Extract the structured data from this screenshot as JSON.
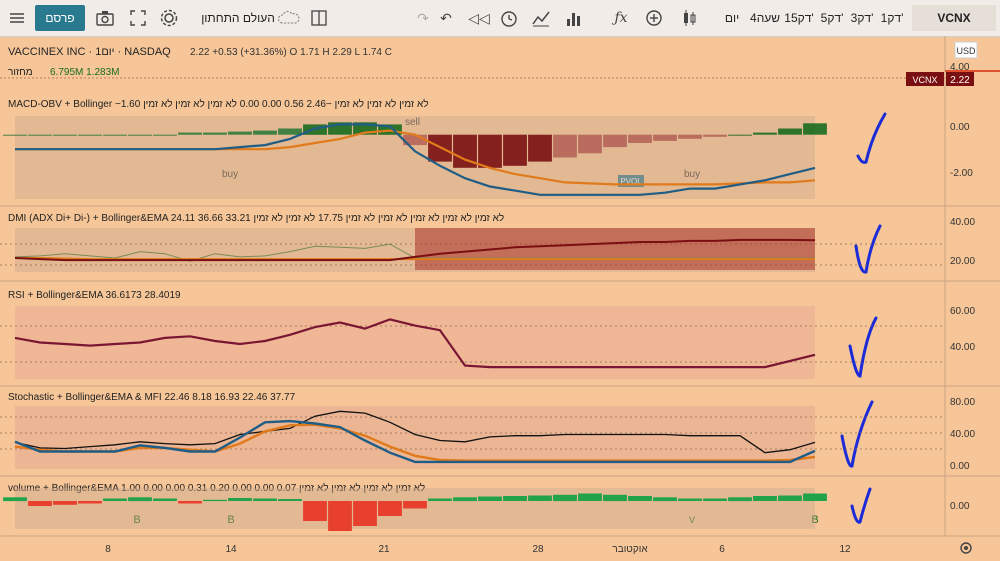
{
  "toolbar": {
    "publish_label": "פרסם",
    "workspace_label": "העולם התחתון",
    "interval_label": "יום",
    "hour4_label": "4שעה",
    "intervals": [
      "1דק'",
      "3דק'",
      "5דק'",
      "15דק'"
    ],
    "symbol": "VCNX"
  },
  "header": {
    "title": "VACCINEX INC · 1יום · NASDAQ",
    "ohlc": "2.22 +0.53 (+31.36%) O 1.71 H 2.29 L 1.74 C",
    "volume_label": "מחזור",
    "volume_values": "6.795M  1.283M"
  },
  "price": {
    "tag": "VCNX",
    "last": "2.22",
    "axis": [
      "4.00"
    ]
  },
  "legends": {
    "macd": "MACD-OBV + Bollinger  −1.60  לא זמין לא זמין לא זמין  −2.46  0.56  0.00  0.00  לא זמין לא זמין לא זמין",
    "dmi": "DMI (ADX Di+ Di-) + Bollinger&EMA  24.11  36.66  33.21  לא זמין לא זמין לא זמין לא זמין לא זמין  17.75  לא זמין לא זמין",
    "rsi": "RSI + Bollinger&EMA  36.6173  28.4019",
    "stoch": "Stochastic + Bollinger&EMA & MFI  22.46  8.18  16.93  22.46  37.77",
    "volume": "volume + Bollinger&EMA  1.00  0.00  0.00  0.31  0.20  0.00  0.00  0.07  לא זמין לא זמין לא זמין לא זמין"
  },
  "colors": {
    "bg": "#f6c698",
    "blue": "#1f5d86",
    "orange": "#e07a1b",
    "maroon": "#7a1633",
    "darkred": "#7a0f12",
    "green": "#1a6b1f",
    "brightgreen": "#22a24a",
    "red": "#e8402f",
    "checkmark": "#1b2bd8"
  },
  "chart_data": {
    "type": "line",
    "x_ticks": [
      "8",
      "14",
      "21",
      "28",
      "אוקטובר",
      "6",
      "12"
    ],
    "annotations": [
      "buy",
      "sell",
      "buy",
      "PVOL"
    ],
    "volume_labels": [
      "B",
      "B",
      "B",
      "V"
    ],
    "panels": [
      {
        "name": "MACD-OBV",
        "axis_ticks": [
          "0.00",
          "-2.00"
        ],
        "ylim": [
          -3.2,
          1
        ],
        "series": [
          {
            "values": [
              -0.7,
              -0.7,
              -0.7,
              -0.7,
              -0.7,
              -0.7,
              -0.7,
              -0.7,
              -0.7,
              -0.6,
              -0.5,
              -0.2,
              0.3,
              0.5,
              0.5,
              0.4,
              -0.8,
              -1.5,
              -2.1,
              -2.5,
              -2.7,
              -2.9,
              -2.9,
              -2.9,
              -2.9,
              -2.9,
              -2.8,
              -2.6,
              -2.6,
              -2.4,
              -2.2,
              -1.9,
              -1.6
            ]
          },
          {
            "values": [
              -0.7,
              -0.7,
              -0.7,
              -0.7,
              -0.7,
              -0.7,
              -0.7,
              -0.7,
              -0.7,
              -0.7,
              -0.7,
              -0.6,
              -0.4,
              -0.2,
              0.1,
              0.2,
              0.0,
              -0.6,
              -1.2,
              -1.6,
              -1.9,
              -2.1,
              -2.3,
              -2.35,
              -2.4,
              -2.4,
              -2.4,
              -2.4,
              -2.4,
              -2.35,
              -2.3,
              -2.3,
              -2.2
            ]
          }
        ],
        "histogram": [
          0,
          0,
          0,
          0,
          0,
          0,
          0,
          0.1,
          0.1,
          0.15,
          0.2,
          0.3,
          0.5,
          0.6,
          0.6,
          0.5,
          -0.5,
          -1.3,
          -1.6,
          -1.6,
          -1.5,
          -1.3,
          -1.1,
          -0.9,
          -0.6,
          -0.4,
          -0.3,
          -0.2,
          -0.1,
          0.0,
          0.1,
          0.3,
          0.55
        ]
      },
      {
        "name": "DMI",
        "axis_ticks": [
          "40.00",
          "20.00"
        ],
        "ylim": [
          5,
          50
        ],
        "series": [
          {
            "values": [
              20,
              19,
              18,
              18,
              18,
              18,
              18,
              18,
              18,
              18,
              18,
              18,
              18,
              18,
              18,
              18,
              21,
              24,
              26,
              28,
              30,
              31,
              32,
              33,
              34,
              35,
              35,
              36,
              36,
              37,
              37,
              37,
              36.7
            ]
          },
          {
            "values": [
              20,
              20,
              19.5,
              19,
              19,
              19,
              19,
              19,
              19,
              19,
              19,
              19,
              19,
              19,
              19,
              19,
              19,
              19,
              19,
              19,
              19,
              19,
              19,
              19,
              19,
              19,
              19,
              19,
              19,
              19,
              19,
              19,
              19
            ]
          },
          {
            "values": [
              21,
              22,
              24,
              22,
              20,
              26,
              24,
              17,
              24,
              21,
              22,
              26,
              31,
              30,
              29,
              33,
              20,
              20,
              20,
              20,
              20,
              20,
              20,
              20,
              20,
              20,
              20,
              20,
              20,
              20,
              20,
              20,
              20
            ]
          }
        ]
      },
      {
        "name": "RSI",
        "axis_ticks": [
          "60.00",
          "40.00"
        ],
        "ylim": [
          20,
          70
        ],
        "series": [
          {
            "values": [
              48,
              45,
              44,
              43,
              44,
              45,
              48,
              49,
              46,
              44,
              46,
              50,
              55,
              58,
              54,
              60,
              56,
              53,
              30,
              29,
              29,
              29,
              29,
              29,
              29,
              29,
              29,
              29,
              29,
              29,
              29,
              33,
              37
            ]
          }
        ]
      },
      {
        "name": "Stochastic",
        "axis_ticks": [
          "80.00",
          "40.00",
          "0.00"
        ],
        "ylim": [
          -10,
          100
        ],
        "series": [
          {
            "values": [
              38,
              22,
              22,
              22,
              22,
              32,
              28,
              22,
              22,
              45,
              70,
              72,
              68,
              62,
              40,
              20,
              5,
              5,
              5,
              5,
              5,
              5,
              5,
              5,
              5,
              5,
              5,
              5,
              5,
              5,
              5,
              5,
              23
            ]
          },
          {
            "values": [
              30,
              25,
              22,
              22,
              22,
              28,
              28,
              25,
              22,
              35,
              55,
              65,
              66,
              60,
              48,
              30,
              15,
              8,
              7,
              7,
              7,
              7,
              7,
              7,
              7,
              7,
              7,
              7,
              7,
              7,
              7,
              8,
              13
            ]
          },
          {
            "values": [
              37,
              28,
              27,
              30,
              33,
              38,
              35,
              33,
              35,
              50,
              55,
              60,
              80,
              88,
              85,
              70,
              50,
              40,
              38,
              46,
              48,
              48,
              50,
              50,
              50,
              50,
              50,
              48,
              48,
              48,
              20,
              25,
              37
            ]
          }
        ]
      },
      {
        "name": "volume",
        "axis_ticks": [
          "0.00"
        ],
        "ylim": [
          -1.2,
          0.6
        ],
        "bars": [
          0.15,
          -0.2,
          -0.15,
          -0.1,
          0.1,
          0.15,
          0.1,
          -0.1,
          0.05,
          0.12,
          0.1,
          0.08,
          -0.8,
          -1.2,
          -1.0,
          -0.6,
          -0.3,
          0.1,
          0.15,
          0.18,
          0.2,
          0.22,
          0.25,
          0.3,
          0.25,
          0.2,
          0.15,
          0.1,
          0.1,
          0.15,
          0.2,
          0.22,
          0.3
        ]
      }
    ]
  }
}
